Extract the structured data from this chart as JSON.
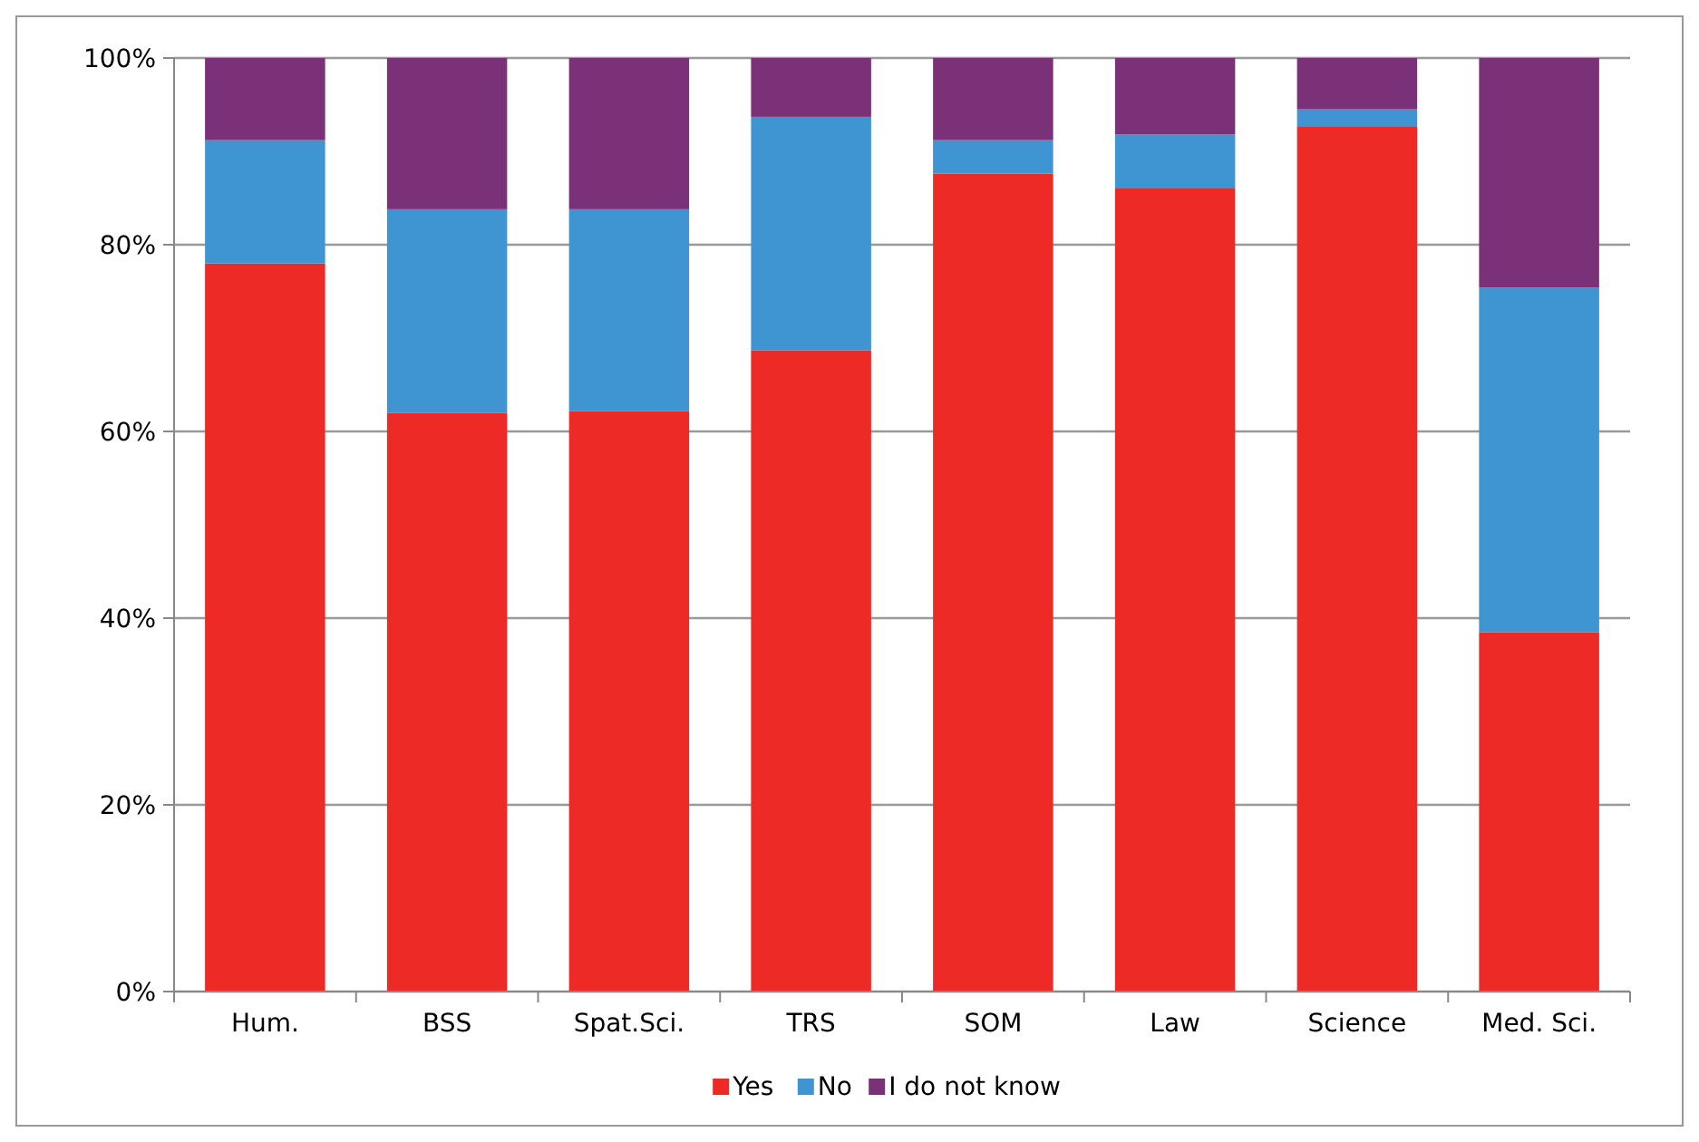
{
  "chart_data": {
    "type": "bar",
    "stacked": true,
    "categories": [
      "Hum.",
      "BSS",
      "Spat.Sci.",
      "TRS",
      "SOM",
      "Law",
      "Science",
      "Med. Sci."
    ],
    "series": [
      {
        "name": "Yes",
        "color": "#ee2a27",
        "values": [
          78,
          62,
          62.2,
          68.7,
          87.6,
          86.1,
          92.7,
          38.5
        ]
      },
      {
        "name": "No",
        "color": "#3f94d2",
        "values": [
          13.2,
          21.8,
          21.6,
          25,
          3.6,
          5.7,
          1.8,
          36.9
        ]
      },
      {
        "name": "I do not know",
        "color": "#7b3177",
        "values": [
          8.8,
          16.2,
          16.2,
          6.3,
          8.8,
          8.2,
          5.5,
          24.6
        ]
      }
    ],
    "ylim": [
      0,
      100
    ],
    "yticks": [
      {
        "value": 0,
        "label": "0%"
      },
      {
        "value": 20,
        "label": "20%"
      },
      {
        "value": 40,
        "label": "40%"
      },
      {
        "value": 60,
        "label": "60%"
      },
      {
        "value": 80,
        "label": "80%"
      },
      {
        "value": 100,
        "label": "100%"
      }
    ],
    "grid": "y",
    "legend": "bottom"
  }
}
